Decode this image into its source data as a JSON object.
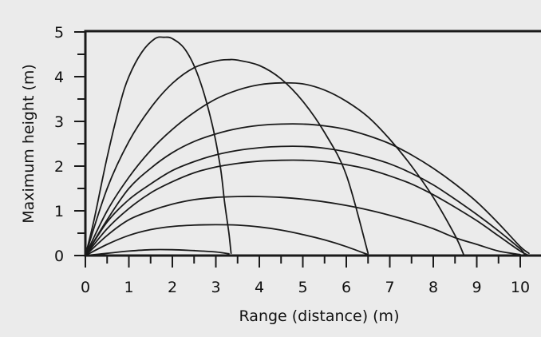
{
  "chart_data": {
    "type": "line",
    "title": "",
    "xlabel": "Range (distance) (m)",
    "ylabel": "Maximum height (m)",
    "xlim": [
      0,
      10.5
    ],
    "ylim": [
      0,
      5
    ],
    "xticks": [
      0,
      1,
      2,
      3,
      4,
      5,
      6,
      7,
      8,
      9,
      10
    ],
    "yticks": [
      0,
      1,
      2,
      3,
      4,
      5
    ],
    "grid": false,
    "legend": "none",
    "line_color": "#1a1a1a",
    "background_color": "#ebebeb",
    "series": [
      {
        "values": [
          [
            0,
            0
          ],
          [
            0.5,
            0.05
          ],
          [
            1.0,
            0.1
          ],
          [
            1.5,
            0.13
          ],
          [
            2.0,
            0.13
          ],
          [
            2.5,
            0.11
          ],
          [
            3.0,
            0.08
          ],
          [
            3.3,
            0.04
          ]
        ]
      },
      {
        "values": [
          [
            0,
            0
          ],
          [
            0.5,
            0.25
          ],
          [
            1.0,
            0.45
          ],
          [
            1.5,
            0.58
          ],
          [
            2.0,
            0.65
          ],
          [
            2.5,
            0.68
          ],
          [
            3.0,
            0.69
          ],
          [
            3.5,
            0.68
          ],
          [
            4.0,
            0.64
          ],
          [
            4.5,
            0.57
          ],
          [
            5.0,
            0.47
          ],
          [
            5.5,
            0.35
          ],
          [
            6.0,
            0.2
          ],
          [
            6.5,
            0.02
          ]
        ]
      },
      {
        "values": [
          [
            0,
            0
          ],
          [
            0.5,
            0.45
          ],
          [
            1.0,
            0.8
          ],
          [
            1.5,
            1.0
          ],
          [
            2.0,
            1.15
          ],
          [
            2.5,
            1.25
          ],
          [
            3.0,
            1.3
          ],
          [
            3.5,
            1.32
          ],
          [
            4.0,
            1.32
          ],
          [
            4.5,
            1.3
          ],
          [
            5.0,
            1.26
          ],
          [
            5.5,
            1.2
          ],
          [
            6.0,
            1.12
          ],
          [
            6.5,
            1.02
          ],
          [
            7.0,
            0.9
          ],
          [
            7.5,
            0.76
          ],
          [
            8.0,
            0.6
          ],
          [
            8.5,
            0.4
          ],
          [
            9.0,
            0.25
          ],
          [
            9.5,
            0.1
          ],
          [
            10.0,
            0.02
          ]
        ]
      },
      {
        "values": [
          [
            0,
            0
          ],
          [
            0.5,
            0.6
          ],
          [
            1.0,
            1.05
          ],
          [
            1.5,
            1.4
          ],
          [
            2.0,
            1.65
          ],
          [
            2.5,
            1.85
          ],
          [
            3.0,
            1.98
          ],
          [
            3.5,
            2.06
          ],
          [
            4.0,
            2.11
          ],
          [
            4.5,
            2.13
          ],
          [
            5.0,
            2.13
          ],
          [
            5.5,
            2.1
          ],
          [
            6.0,
            2.03
          ],
          [
            6.5,
            1.93
          ],
          [
            7.0,
            1.78
          ],
          [
            7.5,
            1.6
          ],
          [
            8.0,
            1.36
          ],
          [
            8.5,
            1.08
          ],
          [
            9.0,
            0.78
          ],
          [
            9.5,
            0.44
          ],
          [
            10.0,
            0.1
          ],
          [
            10.2,
            0.0
          ]
        ]
      },
      {
        "values": [
          [
            0,
            0
          ],
          [
            0.5,
            0.75
          ],
          [
            1.0,
            1.25
          ],
          [
            1.5,
            1.6
          ],
          [
            2.0,
            1.9
          ],
          [
            2.5,
            2.1
          ],
          [
            3.0,
            2.25
          ],
          [
            3.5,
            2.35
          ],
          [
            4.0,
            2.41
          ],
          [
            4.5,
            2.44
          ],
          [
            5.0,
            2.44
          ],
          [
            5.5,
            2.4
          ],
          [
            6.0,
            2.32
          ],
          [
            6.5,
            2.2
          ],
          [
            7.0,
            2.05
          ],
          [
            7.5,
            1.84
          ],
          [
            8.0,
            1.58
          ],
          [
            8.5,
            1.26
          ],
          [
            9.0,
            0.92
          ],
          [
            9.5,
            0.55
          ],
          [
            10.0,
            0.15
          ],
          [
            10.1,
            0.02
          ]
        ]
      },
      {
        "values": [
          [
            0,
            0
          ],
          [
            0.5,
            0.8
          ],
          [
            1.0,
            1.5
          ],
          [
            1.5,
            1.95
          ],
          [
            2.0,
            2.3
          ],
          [
            2.5,
            2.55
          ],
          [
            3.0,
            2.72
          ],
          [
            3.5,
            2.84
          ],
          [
            4.0,
            2.91
          ],
          [
            4.5,
            2.94
          ],
          [
            5.0,
            2.94
          ],
          [
            5.5,
            2.9
          ],
          [
            6.0,
            2.82
          ],
          [
            6.5,
            2.68
          ],
          [
            7.0,
            2.5
          ],
          [
            7.5,
            2.25
          ],
          [
            8.0,
            1.95
          ],
          [
            8.5,
            1.6
          ],
          [
            9.0,
            1.2
          ],
          [
            9.5,
            0.72
          ],
          [
            10.0,
            0.2
          ],
          [
            10.2,
            0.05
          ]
        ]
      },
      {
        "values": [
          [
            0,
            0
          ],
          [
            0.5,
            1.0
          ],
          [
            1.0,
            1.75
          ],
          [
            1.5,
            2.35
          ],
          [
            2.0,
            2.82
          ],
          [
            2.5,
            3.2
          ],
          [
            3.0,
            3.5
          ],
          [
            3.5,
            3.7
          ],
          [
            4.0,
            3.82
          ],
          [
            4.5,
            3.86
          ],
          [
            5.0,
            3.84
          ],
          [
            5.5,
            3.7
          ],
          [
            6.0,
            3.45
          ],
          [
            6.5,
            3.1
          ],
          [
            7.0,
            2.6
          ],
          [
            7.5,
            2.0
          ],
          [
            8.0,
            1.3
          ],
          [
            8.5,
            0.45
          ],
          [
            8.7,
            0.02
          ]
        ]
      },
      {
        "values": [
          [
            0,
            0
          ],
          [
            0.5,
            1.5
          ],
          [
            1.0,
            2.55
          ],
          [
            1.5,
            3.3
          ],
          [
            2.0,
            3.85
          ],
          [
            2.5,
            4.2
          ],
          [
            3.0,
            4.35
          ],
          [
            3.3,
            4.38
          ],
          [
            3.5,
            4.37
          ],
          [
            4.0,
            4.25
          ],
          [
            4.5,
            3.95
          ],
          [
            5.0,
            3.45
          ],
          [
            5.5,
            2.75
          ],
          [
            6.0,
            1.8
          ],
          [
            6.5,
            0.05
          ]
        ]
      },
      {
        "values": [
          [
            0,
            0
          ],
          [
            0.2,
            0.8
          ],
          [
            0.5,
            2.2
          ],
          [
            0.8,
            3.4
          ],
          [
            1.0,
            4.0
          ],
          [
            1.3,
            4.55
          ],
          [
            1.6,
            4.85
          ],
          [
            1.8,
            4.88
          ],
          [
            2.0,
            4.85
          ],
          [
            2.3,
            4.6
          ],
          [
            2.6,
            4.0
          ],
          [
            2.9,
            3.0
          ],
          [
            3.1,
            2.0
          ],
          [
            3.2,
            1.2
          ],
          [
            3.3,
            0.5
          ],
          [
            3.35,
            0.05
          ]
        ]
      }
    ]
  }
}
